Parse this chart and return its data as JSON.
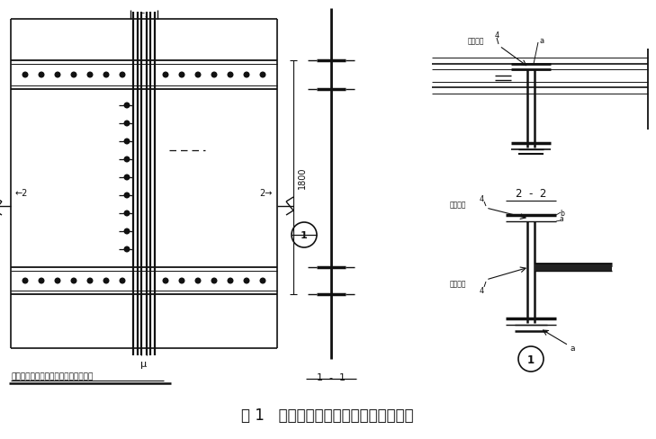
{
  "title": "图 1   圆筒边形气柜侧壁安装节点示意图",
  "subtitle_left": "圆筒形气柜立柱与侧板安装节点立面图",
  "label_1_1": "1  -  1",
  "label_2_2": "2  -  2",
  "dim_1800": "1800",
  "weld_label": "焊后磨平",
  "bg_color": "#ffffff",
  "line_color": "#111111"
}
